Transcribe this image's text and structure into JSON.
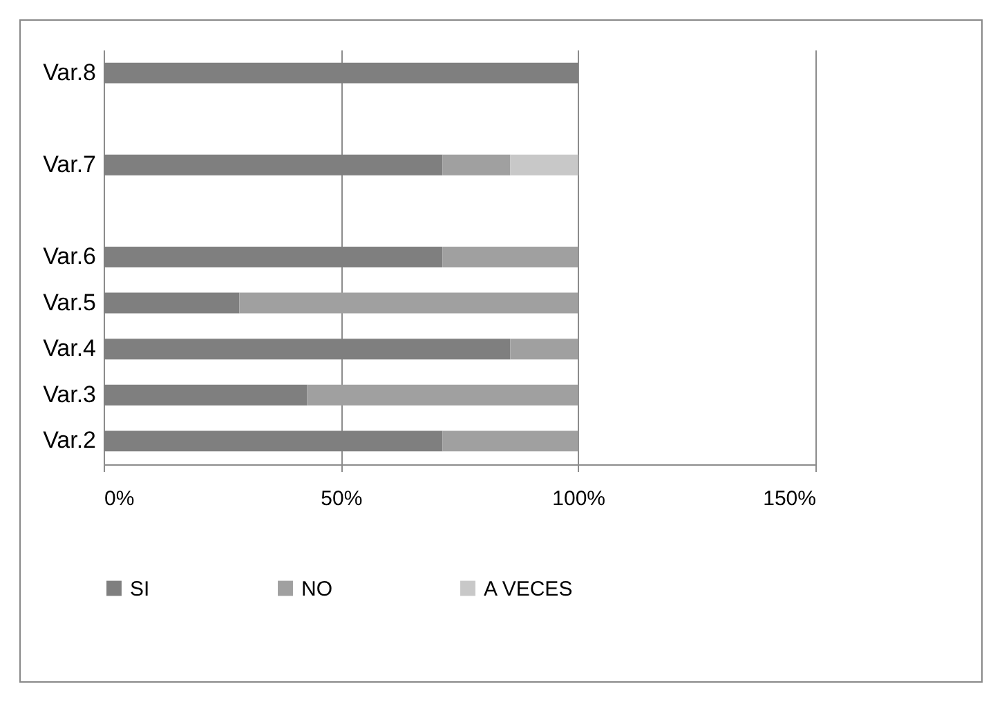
{
  "chart_data": {
    "type": "bar",
    "orientation": "horizontal",
    "stacked": true,
    "categories": [
      "Var.8",
      null,
      "Var.7",
      null,
      "Var.6",
      "Var.5",
      "Var.4",
      "Var.3",
      "Var.2"
    ],
    "series": [
      {
        "name": "SI",
        "color": "#7f7f7f",
        "values": [
          100,
          null,
          71.4,
          null,
          71.4,
          28.6,
          85.7,
          42.9,
          71.4
        ]
      },
      {
        "name": "NO",
        "color": "#a0a0a0",
        "values": [
          null,
          null,
          14.3,
          null,
          28.6,
          71.4,
          14.3,
          57.1,
          28.6
        ]
      },
      {
        "name": "A VECES",
        "color": "#c8c8c8",
        "values": [
          null,
          null,
          14.3,
          null,
          null,
          null,
          null,
          null,
          null
        ]
      }
    ],
    "xlim": [
      0,
      150
    ],
    "xticks": [
      {
        "value": 0,
        "label": "0%"
      },
      {
        "value": 50,
        "label": "50%"
      },
      {
        "value": 100,
        "label": "100%"
      },
      {
        "value": 150,
        "label": "150%"
      }
    ],
    "grid": "x",
    "legend": "bottom"
  }
}
